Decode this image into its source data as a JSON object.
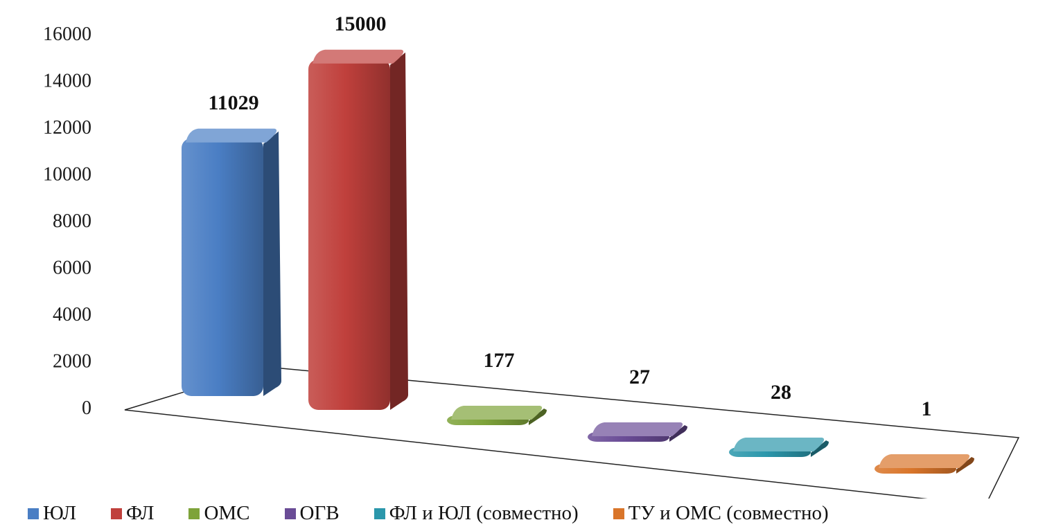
{
  "chart_data": {
    "type": "bar",
    "title": "",
    "xlabel": "",
    "ylabel": "",
    "ylim": [
      0,
      16000
    ],
    "y_ticks": [
      "0",
      "2000",
      "4000",
      "6000",
      "8000",
      "10000",
      "12000",
      "14000",
      "16000"
    ],
    "grid": false,
    "legend_position": "bottom",
    "series": [
      {
        "name": "ЮЛ",
        "value": 11029,
        "label": "11029",
        "color": "#4a7ec4"
      },
      {
        "name": "ФЛ",
        "value": 15000,
        "label": "15000",
        "color": "#c0403c"
      },
      {
        "name": "ОМС",
        "value": 177,
        "label": "177",
        "color": "#7ea33a"
      },
      {
        "name": "ОГВ",
        "value": 27,
        "label": "27",
        "color": "#6a4c96"
      },
      {
        "name": "ФЛ и ЮЛ (совместно)",
        "value": 28,
        "label": "28",
        "color": "#2b97ab"
      },
      {
        "name": "ТУ и ОМС (совместно)",
        "value": 1,
        "label": "1",
        "color": "#d9752a"
      }
    ]
  }
}
